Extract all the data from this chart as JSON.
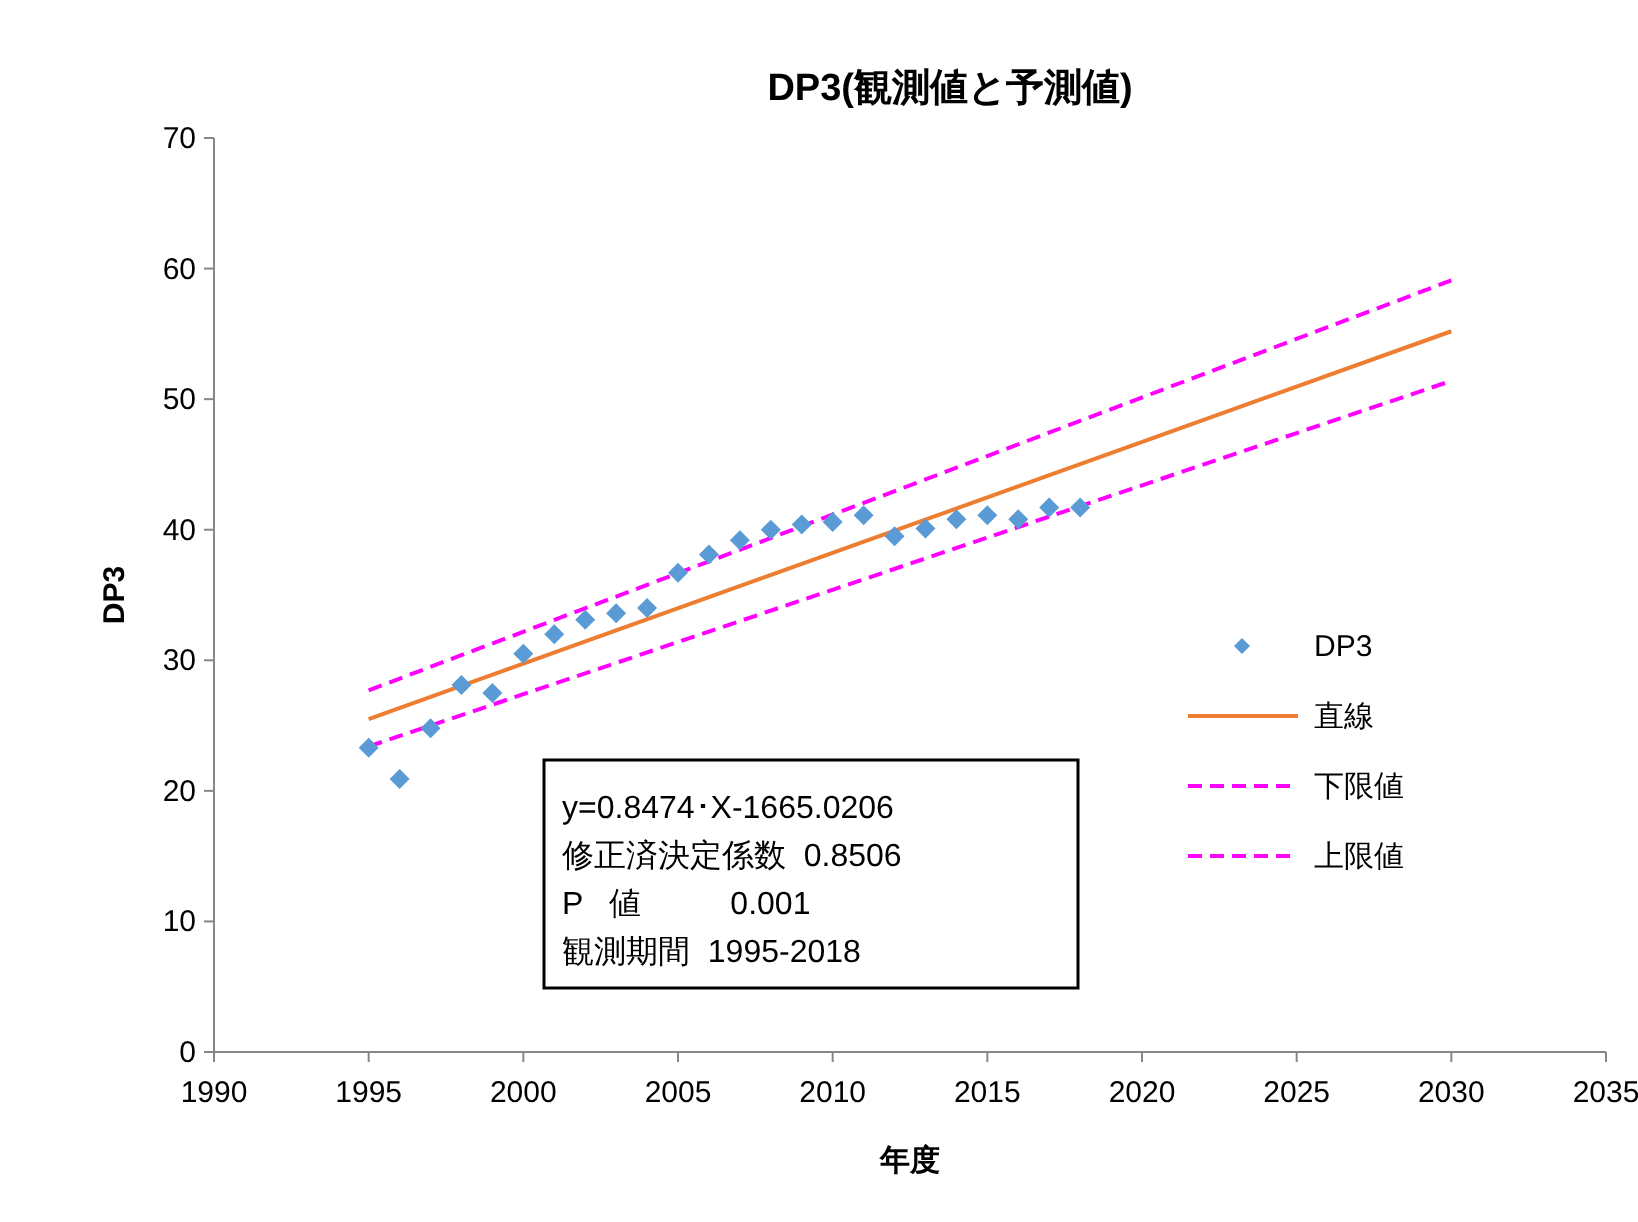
{
  "chart_data": {
    "type": "scatter",
    "title": "DP3(観測値と予測値)",
    "xlabel": "年度",
    "ylabel": "DP3",
    "xlim": [
      1990,
      2035
    ],
    "xticks": [
      1990,
      1995,
      2000,
      2005,
      2010,
      2015,
      2020,
      2025,
      2030,
      2035
    ],
    "ylim": [
      0,
      70
    ],
    "yticks": [
      0,
      10,
      20,
      30,
      40,
      50,
      60,
      70
    ],
    "grid": false,
    "legend": "right",
    "series": [
      {
        "name": "DP3",
        "marker": "diamond",
        "color": "#5b9bd5",
        "x": [
          1995,
          1996,
          1997,
          1998,
          1999,
          2000,
          2001,
          2002,
          2003,
          2004,
          2005,
          2006,
          2007,
          2008,
          2009,
          2010,
          2011,
          2012,
          2013,
          2014,
          2015,
          2016,
          2017,
          2018
        ],
        "values": [
          23.3,
          20.9,
          24.8,
          28.1,
          27.5,
          30.5,
          32.0,
          33.1,
          33.6,
          34.0,
          36.7,
          38.1,
          39.2,
          40.0,
          40.4,
          40.6,
          41.1,
          39.5,
          40.1,
          40.8,
          41.1,
          40.8,
          41.7,
          41.7
        ]
      },
      {
        "name": "直線",
        "type": "line",
        "line_style": "solid",
        "color": "#ed7d31",
        "x": [
          1995,
          2030
        ],
        "values": [
          25.5,
          55.2
        ]
      },
      {
        "name": "下限値",
        "type": "line",
        "line_style": "dashed",
        "color": "#ff00ff",
        "x": [
          1995,
          2030
        ],
        "values": [
          23.4,
          51.4
        ]
      },
      {
        "name": "上限値",
        "type": "line",
        "line_style": "dashed",
        "color": "#ff00ff",
        "x": [
          1995,
          2030
        ],
        "values": [
          27.7,
          59.1
        ]
      }
    ],
    "annotations": [
      "y=0.8474･X-1665.0206",
      "修正済決定係数  0.8506",
      "P   値          0.001",
      "観測期間  1995-2018"
    ]
  }
}
